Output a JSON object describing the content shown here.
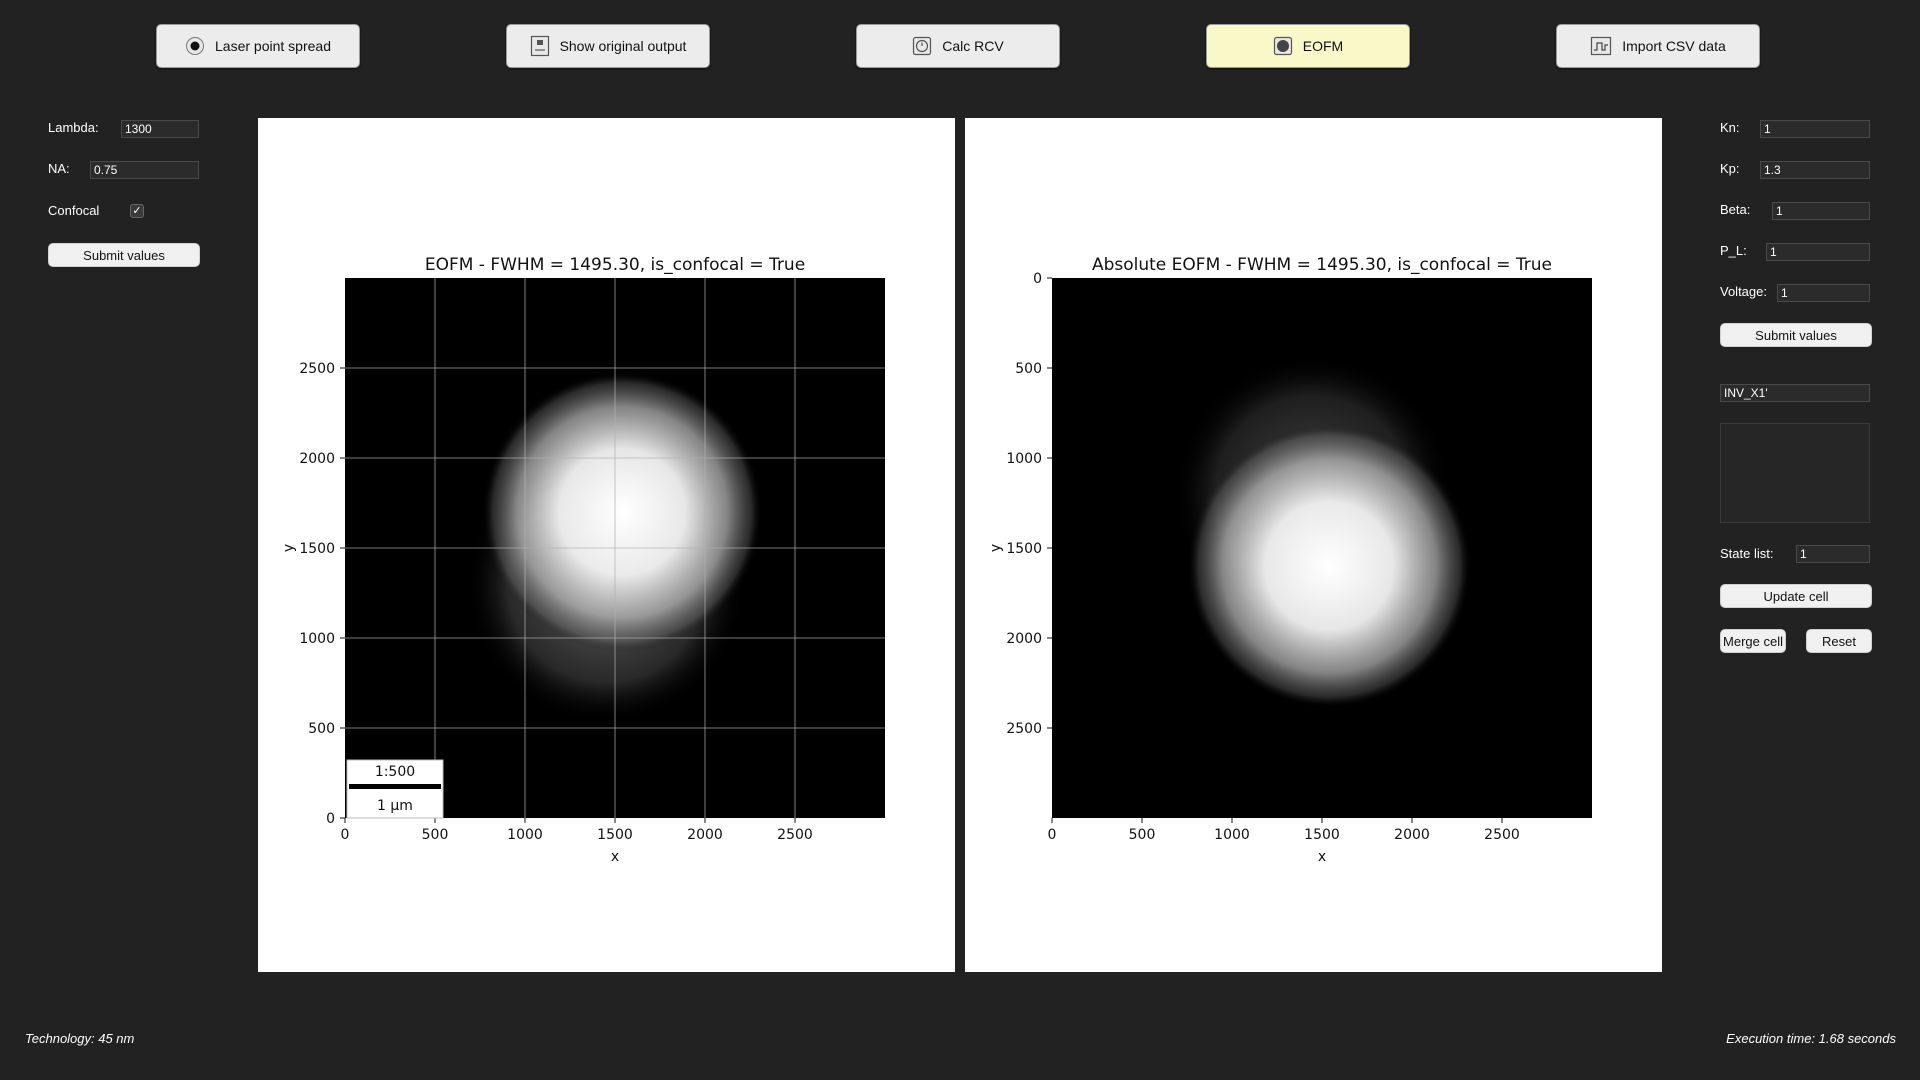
{
  "toolbar": {
    "buttons": [
      {
        "label": "Laser point spread",
        "icon": "radio-dot-icon"
      },
      {
        "label": "Show original output",
        "icon": "output-icon"
      },
      {
        "label": "Calc RCV",
        "icon": "clock-icon"
      },
      {
        "label": "EOFM",
        "icon": "eofm-icon",
        "active": true
      },
      {
        "label": "Import CSV data",
        "icon": "waveform-icon"
      }
    ]
  },
  "left_panel": {
    "lambda_label": "Lambda:",
    "lambda_value": "1300",
    "na_label": "NA:",
    "na_value": "0.75",
    "confocal_label": "Confocal",
    "confocal_checked": true,
    "submit_label": "Submit values"
  },
  "right_panel": {
    "kn_label": "Kn:",
    "kn_value": "1",
    "kp_label": "Kp:",
    "kp_value": "1.3",
    "beta_label": "Beta:",
    "beta_value": "1",
    "pl_label": "P_L:",
    "pl_value": "1",
    "voltage_label": "Voltage:",
    "voltage_value": "1",
    "submit_label": "Submit values",
    "cell_name_value": "INV_X1'",
    "state_list_label": "State list:",
    "state_list_value": "1",
    "update_cell_label": "Update cell",
    "merge_cell_label": "Merge cell",
    "reset_label": "Reset"
  },
  "chart_data": [
    {
      "type": "heatmap",
      "title": "EOFM - FWHM = 1495.30, is_confocal = True",
      "xlabel": "x",
      "ylabel": "y",
      "xlim": [
        0,
        3000
      ],
      "ylim": [
        0,
        3000
      ],
      "y_direction": "up",
      "x_ticks": [
        0,
        500,
        1000,
        1500,
        2000,
        2500
      ],
      "y_ticks": [
        0,
        500,
        1000,
        1500,
        2000,
        2500
      ],
      "grid": true,
      "colormap": "gray",
      "spots": [
        {
          "cx": 1540,
          "cy": 1700,
          "r": 780,
          "intensity": 1.0
        },
        {
          "cx": 1450,
          "cy": 1300,
          "r": 780,
          "intensity": 0.35
        }
      ],
      "scale_bar": {
        "ratio": "1:500",
        "length_label": "1 µm",
        "position": "bottom-left"
      }
    },
    {
      "type": "heatmap",
      "title": "Absolute EOFM - FWHM = 1495.30, is_confocal = True",
      "xlabel": "x",
      "ylabel": "y",
      "xlim": [
        0,
        3000
      ],
      "ylim": [
        0,
        3000
      ],
      "y_direction": "down",
      "x_ticks": [
        0,
        500,
        1000,
        1500,
        2000,
        2500
      ],
      "y_ticks": [
        0,
        500,
        1000,
        1500,
        2000,
        2500
      ],
      "grid": false,
      "colormap": "gray",
      "spots": [
        {
          "cx": 1540,
          "cy": 1600,
          "r": 790,
          "intensity": 1.0
        },
        {
          "cx": 1450,
          "cy": 1200,
          "r": 780,
          "intensity": 0.3
        }
      ]
    }
  ],
  "status": {
    "technology": "Technology: 45 nm",
    "execution_time": "Execution time: 1.68 seconds"
  }
}
